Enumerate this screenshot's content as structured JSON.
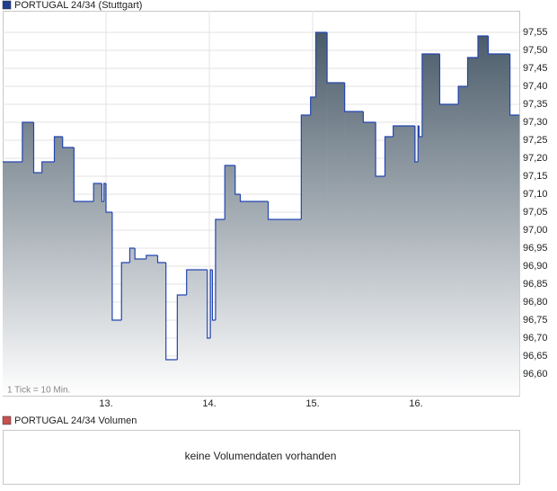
{
  "chart_data": {
    "type": "step-area",
    "title": "PORTUGAL 24/34 (Stuttgart)",
    "note": "1 Tick = 10 Min.",
    "x": [
      12.0,
      12.19,
      12.3,
      12.38,
      12.5,
      12.58,
      12.69,
      12.88,
      12.96,
      12.98,
      13.0,
      13.06,
      13.15,
      13.23,
      13.28,
      13.39,
      13.5,
      13.58,
      13.69,
      13.78,
      13.98,
      14.01,
      14.03,
      14.06,
      14.15,
      14.25,
      14.3,
      14.57,
      14.89,
      14.98,
      15.03,
      15.14,
      15.31,
      15.49,
      15.61,
      15.7,
      15.78,
      15.99,
      16.02,
      16.03,
      16.06,
      16.23,
      16.41,
      16.5,
      16.6,
      16.7,
      16.91
    ],
    "values": [
      97.19,
      97.3,
      97.16,
      97.19,
      97.26,
      97.23,
      97.08,
      97.13,
      97.08,
      97.13,
      97.05,
      96.75,
      96.91,
      96.95,
      96.92,
      96.93,
      96.91,
      96.64,
      96.82,
      96.89,
      96.7,
      96.89,
      96.75,
      97.03,
      97.18,
      97.1,
      97.08,
      97.03,
      97.32,
      97.37,
      97.55,
      97.41,
      97.33,
      97.3,
      97.15,
      97.26,
      97.29,
      97.19,
      97.29,
      97.26,
      97.49,
      97.35,
      97.4,
      97.48,
      97.54,
      97.49,
      97.32
    ],
    "line_color": "#2346b0",
    "fill_top": "#3f5160",
    "fill_bottom": "#ffffff",
    "legend_color": "#1f3c8f",
    "xlim": [
      12,
      17
    ],
    "ylim": [
      96.54,
      97.61
    ],
    "xticks": [
      {
        "value": 13,
        "label": "13."
      },
      {
        "value": 14,
        "label": "14."
      },
      {
        "value": 15,
        "label": "15."
      },
      {
        "value": 16,
        "label": "16."
      }
    ],
    "yticks": [
      {
        "value": 96.6,
        "label": "96,60"
      },
      {
        "value": 96.65,
        "label": "96,65"
      },
      {
        "value": 96.7,
        "label": "96,70"
      },
      {
        "value": 96.75,
        "label": "96,75"
      },
      {
        "value": 96.8,
        "label": "96,80"
      },
      {
        "value": 96.85,
        "label": "96,85"
      },
      {
        "value": 96.9,
        "label": "96,90"
      },
      {
        "value": 96.95,
        "label": "96,95"
      },
      {
        "value": 97.0,
        "label": "97,00"
      },
      {
        "value": 97.05,
        "label": "97,05"
      },
      {
        "value": 97.1,
        "label": "97,10"
      },
      {
        "value": 97.15,
        "label": "97,15"
      },
      {
        "value": 97.2,
        "label": "97,20"
      },
      {
        "value": 97.25,
        "label": "97,25"
      },
      {
        "value": 97.3,
        "label": "97,30"
      },
      {
        "value": 97.35,
        "label": "97,35"
      },
      {
        "value": 97.4,
        "label": "97,40"
      },
      {
        "value": 97.45,
        "label": "97,45"
      },
      {
        "value": 97.5,
        "label": "97,50"
      },
      {
        "value": 97.55,
        "label": "97,55"
      }
    ],
    "grid": true
  },
  "volume_panel": {
    "title": "PORTUGAL 24/34 Volumen",
    "message": "keine Volumendaten vorhanden",
    "legend_color": "#c85050"
  }
}
